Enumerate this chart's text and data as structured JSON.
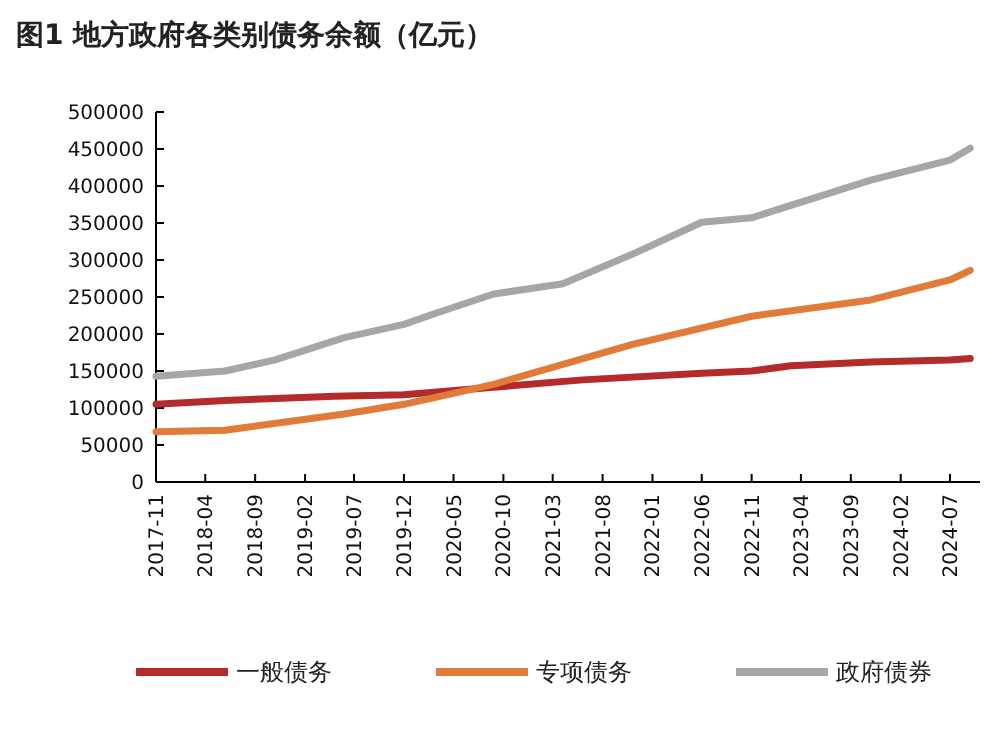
{
  "chart_data": {
    "type": "line",
    "title": "图1   地方政府各类别债务余额（亿元）",
    "x": [
      "2017-11",
      "2018-06",
      "2018-11",
      "2019-05",
      "2019-12",
      "2020-09",
      "2021-06",
      "2022-06",
      "2022-11",
      "2023-03",
      "2023-11",
      "2024-07",
      "2024-09"
    ],
    "series": [
      {
        "name": "一般债务",
        "color": "#b52a2a",
        "values": [
          105000,
          110000,
          113000,
          116000,
          118000,
          128000,
          138000,
          147000,
          150000,
          157000,
          162000,
          165000,
          167000
        ]
      },
      {
        "name": "专项债务",
        "color": "#e07b39",
        "x": [
          "2017-11",
          "2018-06",
          "2019-06",
          "2019-12",
          "2020-09",
          "2021-11",
          "2022-11",
          "2023-11",
          "2024-07",
          "2024-09"
        ],
        "values": [
          68000,
          70000,
          92000,
          105000,
          132000,
          186000,
          224000,
          246000,
          273000,
          286000
        ]
      },
      {
        "name": "政府债券",
        "color": "#a6a6a6",
        "x": [
          "2017-11",
          "2018-06",
          "2018-11",
          "2019-06",
          "2019-12",
          "2020-03",
          "2020-09",
          "2021-04",
          "2021-11",
          "2022-06",
          "2022-11",
          "2023-11",
          "2024-07",
          "2024-09"
        ],
        "values": [
          143000,
          150000,
          165000,
          195000,
          213000,
          227000,
          254000,
          268000,
          308000,
          351000,
          357000,
          408000,
          435000,
          451000
        ]
      }
    ],
    "xlim": [
      "2017-11",
      "2024-10"
    ],
    "xticks": [
      "2017-11",
      "2018-04",
      "2018-09",
      "2019-02",
      "2019-07",
      "2019-12",
      "2020-05",
      "2020-10",
      "2021-03",
      "2021-08",
      "2022-01",
      "2022-06",
      "2022-11",
      "2023-04",
      "2023-09",
      "2024-02",
      "2024-07"
    ],
    "ylim": [
      0,
      500000
    ],
    "yticks": [
      0,
      50000,
      100000,
      150000,
      200000,
      250000,
      300000,
      350000,
      400000,
      450000,
      500000
    ],
    "grid": false,
    "legend": "bottom",
    "marker": "none",
    "line_style": "solid"
  }
}
